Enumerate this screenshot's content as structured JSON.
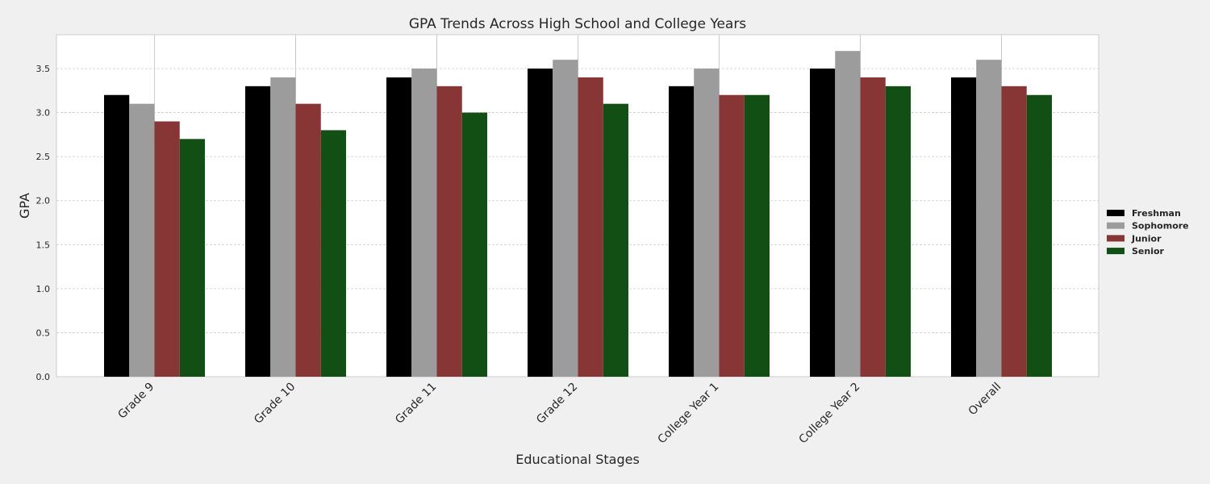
{
  "chart_data": {
    "type": "bar",
    "title": "GPA Trends Across High School and College Years",
    "xlabel": "Educational Stages",
    "ylabel": "GPA",
    "ylim": [
      0,
      3.885
    ],
    "yticks": [
      "0.0",
      "0.5",
      "1.0",
      "1.5",
      "2.0",
      "2.5",
      "3.0",
      "3.5"
    ],
    "categories": [
      "Grade 9",
      "Grade 10",
      "Grade 11",
      "Grade 12",
      "College Year 1",
      "College Year 2",
      "Overall"
    ],
    "series": [
      {
        "name": "Freshman",
        "color": "#000000",
        "values": [
          3.2,
          3.3,
          3.4,
          3.5,
          3.3,
          3.5,
          3.4
        ]
      },
      {
        "name": "Sophomore",
        "color": "#9c9c9c",
        "values": [
          3.1,
          3.4,
          3.5,
          3.6,
          3.5,
          3.7,
          3.6
        ]
      },
      {
        "name": "Junior",
        "color": "#873535",
        "values": [
          2.9,
          3.1,
          3.3,
          3.4,
          3.2,
          3.4,
          3.3
        ]
      },
      {
        "name": "Senior",
        "color": "#114f14",
        "values": [
          2.7,
          2.8,
          3.0,
          3.1,
          3.2,
          3.3,
          3.2
        ]
      }
    ],
    "grid": true,
    "legend_position": "right"
  }
}
